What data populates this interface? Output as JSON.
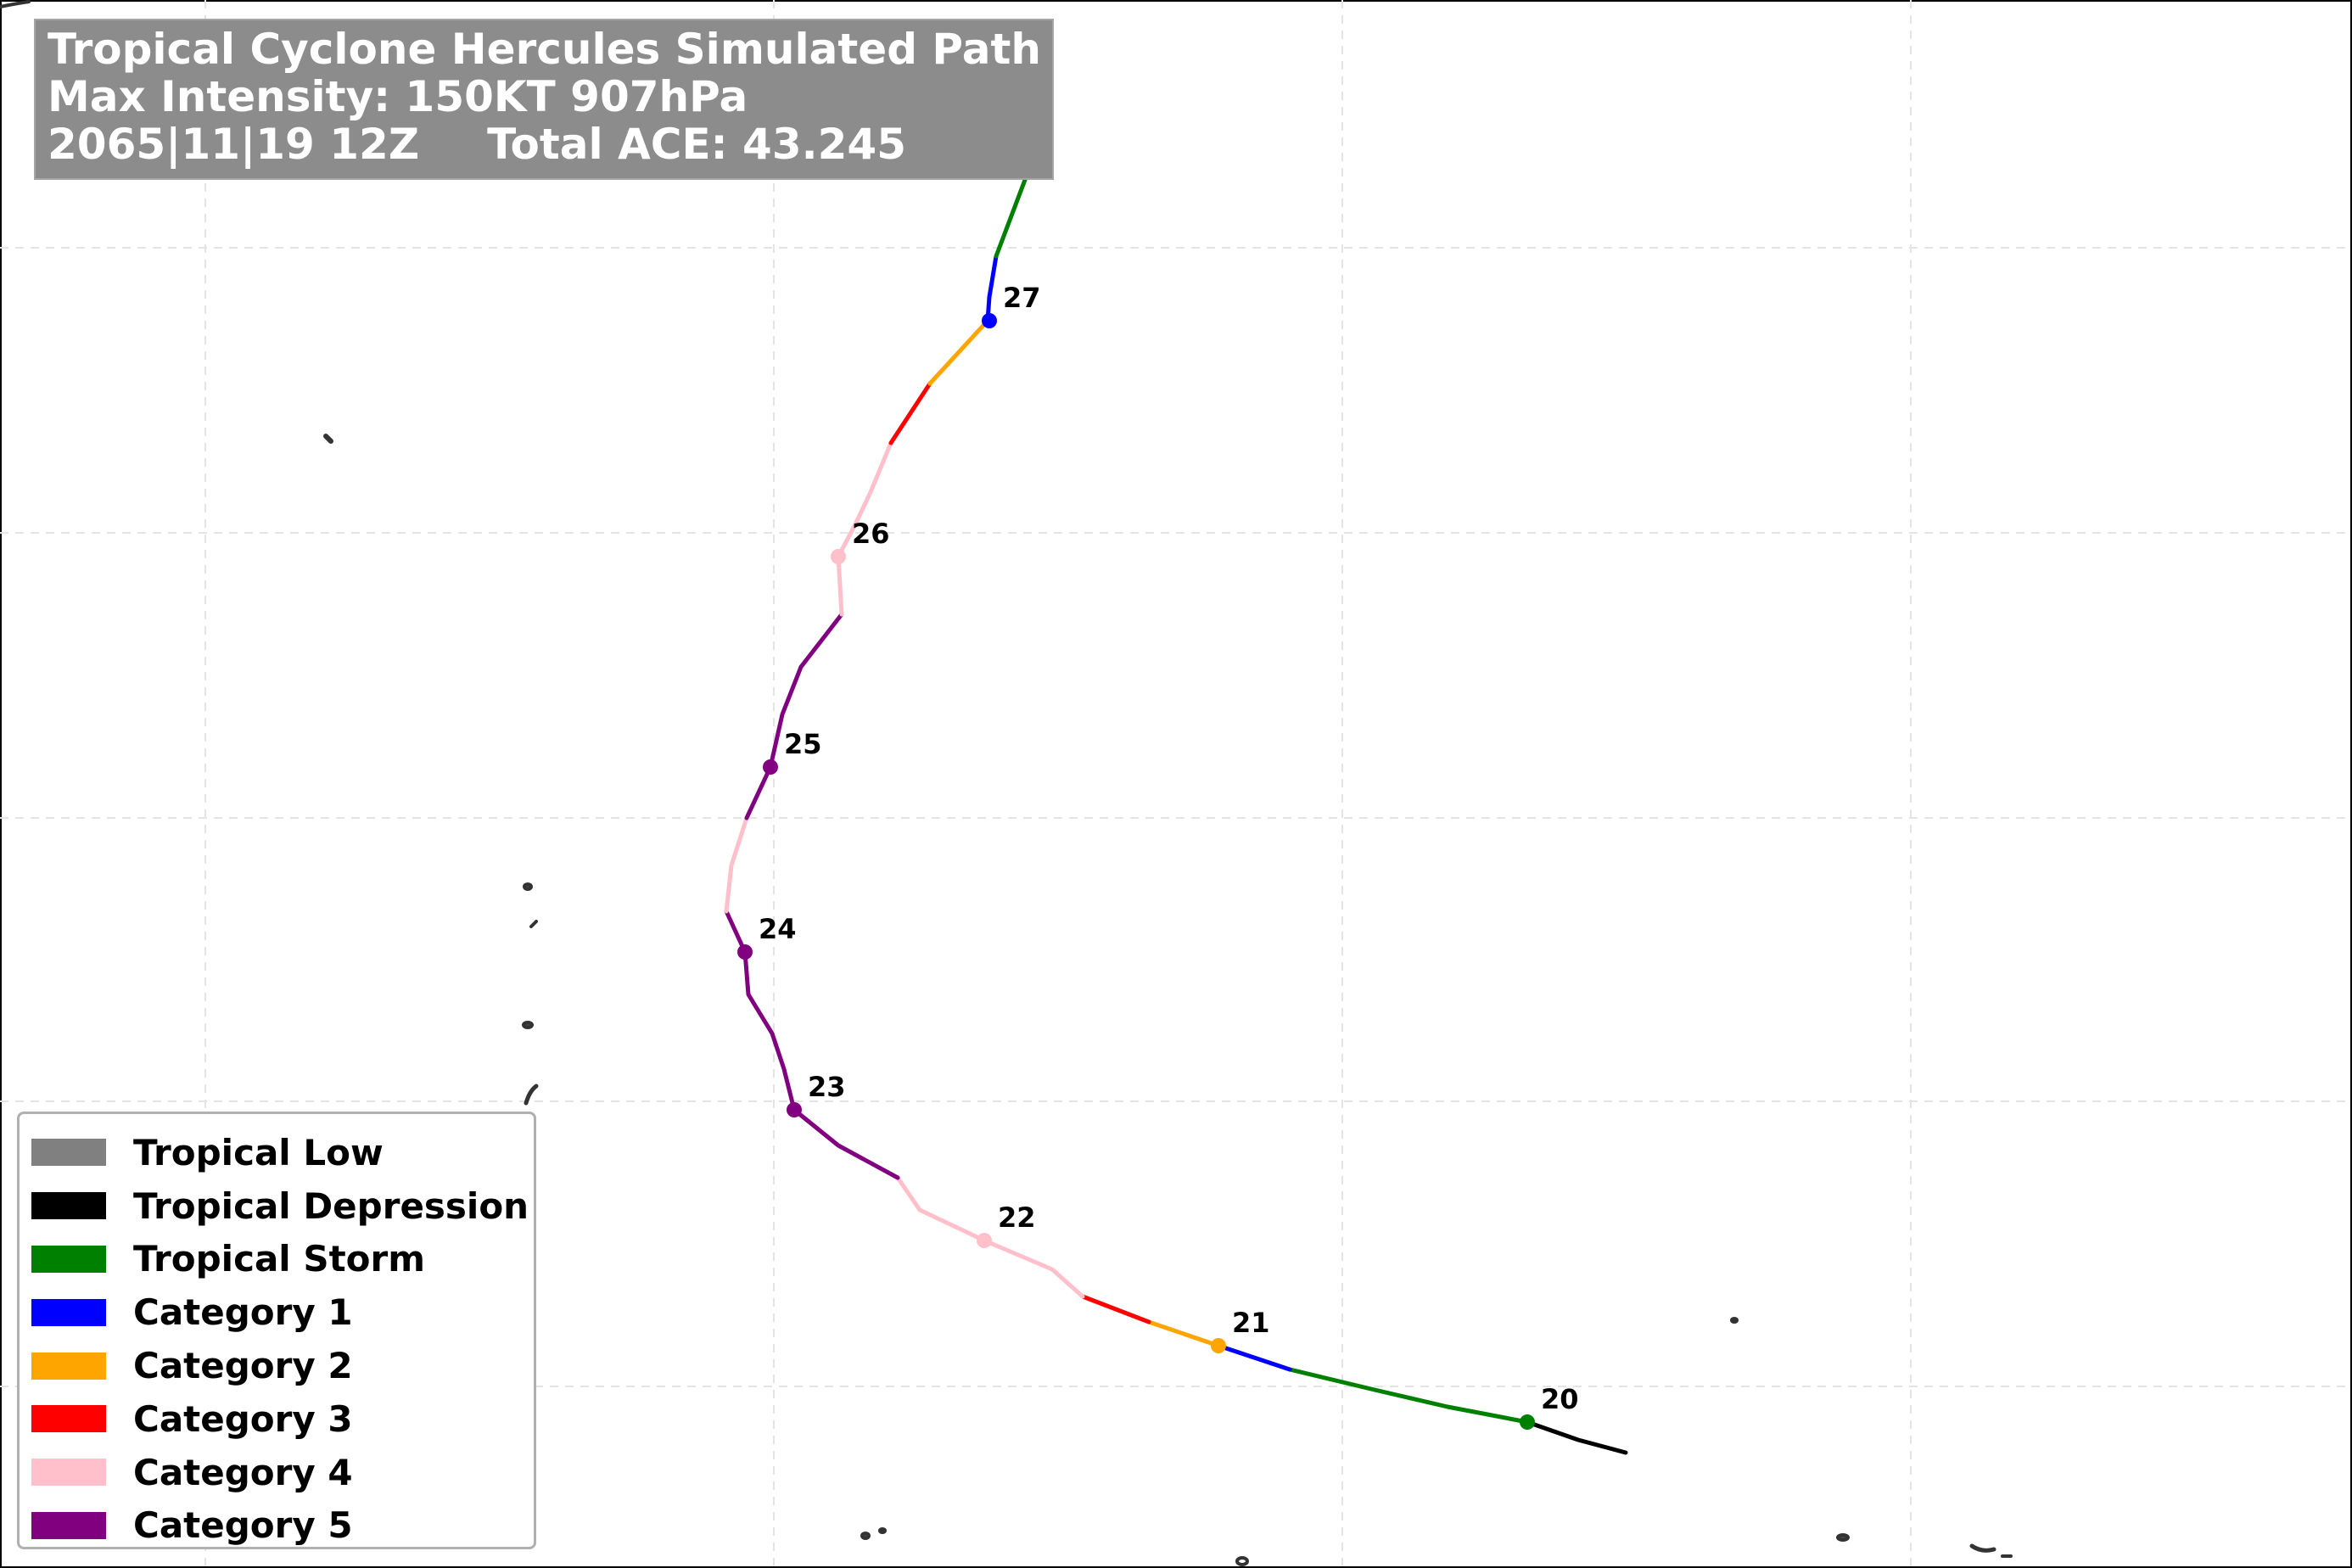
{
  "title": {
    "line1": "Tropical Cyclone Hercules Simulated Path",
    "line2": "Max Intensity: 150KT 907hPa",
    "date": "2065|11|19 12Z",
    "ace": "Total ACE: 43.245"
  },
  "legend": [
    {
      "label": "Tropical Low",
      "color": "#808080"
    },
    {
      "label": "Tropical Depression",
      "color": "#000000"
    },
    {
      "label": "Tropical Storm",
      "color": "#008000"
    },
    {
      "label": "Category 1",
      "color": "#0000ff"
    },
    {
      "label": "Category 2",
      "color": "#ffa500"
    },
    {
      "label": "Category 3",
      "color": "#ff0000"
    },
    {
      "label": "Category 4",
      "color": "#ffc0cb"
    },
    {
      "label": "Category 5",
      "color": "#800080"
    }
  ],
  "day_markers": [
    {
      "label": "20",
      "category": "Tropical Storm"
    },
    {
      "label": "21",
      "category": "Category 2"
    },
    {
      "label": "22",
      "category": "Category 4"
    },
    {
      "label": "23",
      "category": "Category 5"
    },
    {
      "label": "24",
      "category": "Category 5"
    },
    {
      "label": "25",
      "category": "Category 5"
    },
    {
      "label": "26",
      "category": "Category 4"
    },
    {
      "label": "27",
      "category": "Category 1"
    }
  ]
}
